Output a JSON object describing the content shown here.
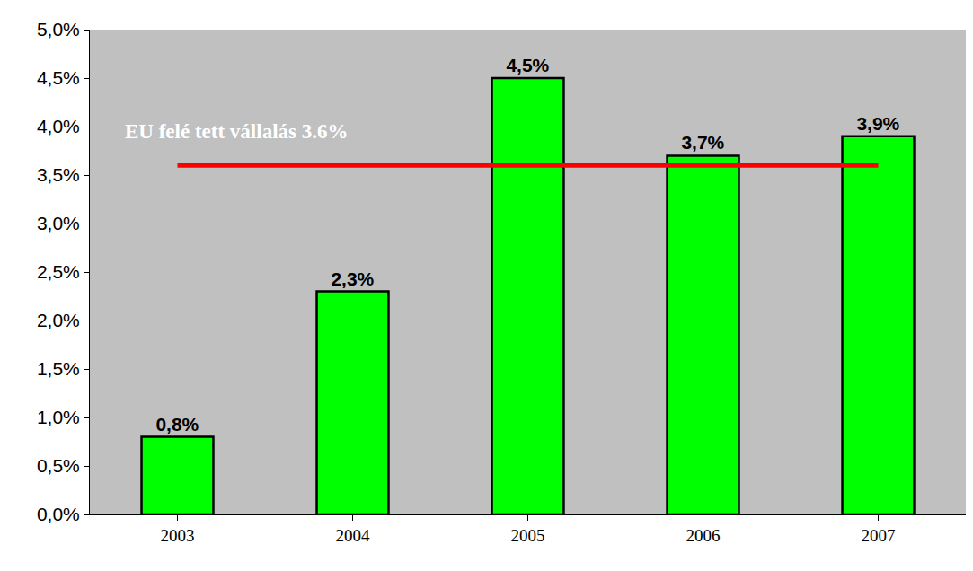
{
  "chart_data": {
    "type": "bar",
    "categories": [
      "2003",
      "2004",
      "2005",
      "2006",
      "2007"
    ],
    "values": [
      0.8,
      2.3,
      4.5,
      3.7,
      3.9
    ],
    "value_labels": [
      "0,8%",
      "2,3%",
      "4,5%",
      "3,7%",
      "3,9%"
    ],
    "data_labels": true,
    "color": "#00ff00",
    "ylim": [
      0,
      5
    ],
    "yticks": [
      {
        "value": 0,
        "label": "0,0%"
      },
      {
        "value": 0.5,
        "label": "0,5%"
      },
      {
        "value": 1,
        "label": "1,0%"
      },
      {
        "value": 1.5,
        "label": "1,5%"
      },
      {
        "value": 2,
        "label": "2,0%"
      },
      {
        "value": 2.5,
        "label": "2,5%"
      },
      {
        "value": 3,
        "label": "3,0%"
      },
      {
        "value": 3.5,
        "label": "3,5%"
      },
      {
        "value": 4,
        "label": "4,0%"
      },
      {
        "value": 4.5,
        "label": "4,5%"
      },
      {
        "value": 5,
        "label": "5,0%"
      }
    ],
    "grid": false,
    "annotations": [
      {
        "text": "EU felé tett vállalás 3.6%",
        "y": 3.6,
        "color": "#ff0000"
      }
    ]
  }
}
